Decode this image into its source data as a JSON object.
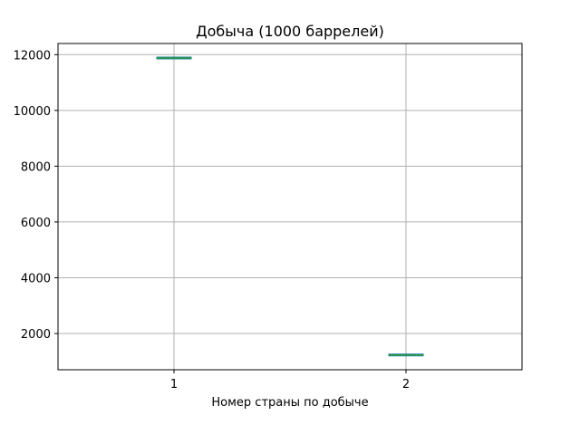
{
  "chart_data": {
    "type": "box",
    "title": "Добыча (1000 баррелей)",
    "xlabel": "Номер страны по добыче",
    "ylabel": "",
    "categories": [
      "1",
      "2"
    ],
    "boxes": [
      {
        "category": "1",
        "min": 11880,
        "q1": 11880,
        "median": 11880,
        "q3": 11880,
        "max": 11880
      },
      {
        "category": "2",
        "min": 1230,
        "q1": 1230,
        "median": 1230,
        "q3": 1230,
        "max": 1230
      }
    ],
    "ylim": [
      700,
      12400
    ],
    "yticks": [
      2000,
      4000,
      6000,
      8000,
      10000,
      12000
    ],
    "grid": true,
    "colors": {
      "box": "#1f77b4",
      "median": "#2ca02c",
      "whisker": "#000000",
      "grid": "#b0b0b0"
    }
  }
}
